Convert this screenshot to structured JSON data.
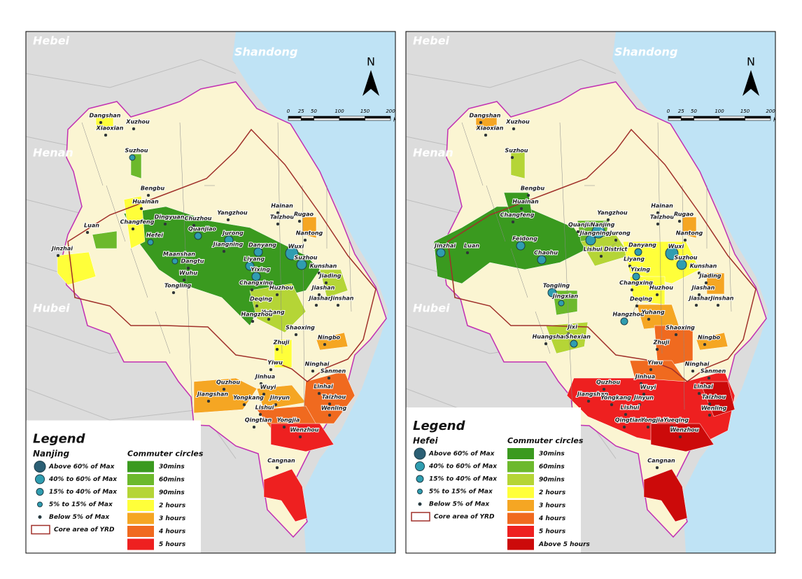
{
  "panels": [
    {
      "province_labels": [
        "Hebei",
        "Shandong",
        "Henan",
        "Hubei"
      ],
      "north": "N",
      "scale": {
        "ticks": [
          0,
          25,
          50,
          100,
          150,
          200
        ],
        "unit": "Km"
      },
      "cities": [
        "Dangshan",
        "Xuzhou",
        "Xiaoxian",
        "Suzhou",
        "Bengbu",
        "Huainan",
        "Changfeng",
        "Dingyuan",
        "Chuzhou",
        "Yangzhou",
        "Hainan",
        "Taizhou",
        "Rugao",
        "Quanjiao",
        "Jurong",
        "Nantong",
        "Luan",
        "Hefei",
        "Jiangning",
        "Danyang",
        "Wuxi",
        "Jinzhai",
        "Maanshan",
        "Dangtu",
        "Liyang",
        "Suzhou",
        "Kunshan",
        "Jiading",
        "Wuhu",
        "Yixing",
        "Changxing",
        "Huzhou",
        "Jiashan",
        "Jiashan",
        "Jinshan",
        "Tongling",
        "Deqing",
        "Yuhang",
        "Hangzhou",
        "Shaoxing",
        "Ningbo",
        "Zhuji",
        "Yiwu",
        "Ninghai",
        "Sanmen",
        "Jinhua",
        "Quzhou",
        "Wuyi",
        "Linhai",
        "Jiangshan",
        "Yongkang",
        "Jinyun",
        "Taizhou",
        "Lishui",
        "Wenling",
        "Qingtian",
        "Yongjia",
        "Wenzhou",
        "Cangnan"
      ],
      "legend": {
        "title": "Legend",
        "origin": "Nanjing",
        "circles": [
          "Above 60% of Max",
          "40% to 60% of Max",
          "15% to 40% of Max",
          "5% to 15% of Max",
          "Below 5% of Max"
        ],
        "classes_title": "Commuter circles",
        "classes": [
          {
            "label": "30mins",
            "color": "#3a9a1f"
          },
          {
            "label": "60mins",
            "color": "#6cb92c"
          },
          {
            "label": "90mins",
            "color": "#b5d536"
          },
          {
            "label": "2 hours",
            "color": "#ffff3a"
          },
          {
            "label": "3 hours",
            "color": "#f5a623"
          },
          {
            "label": "4 hours",
            "color": "#f06a1f"
          },
          {
            "label": "5 hours",
            "color": "#ee2020"
          }
        ],
        "core_area": "Core area of YRD"
      }
    },
    {
      "province_labels": [
        "Hebei",
        "Shandong",
        "Henan",
        "Hubei"
      ],
      "north": "N",
      "scale": {
        "ticks": [
          0,
          25,
          50,
          100,
          150,
          200
        ],
        "unit": "Km"
      },
      "cities": [
        "Dangshan",
        "Xuzhou",
        "Xiaoxian",
        "Suzhou",
        "Bengbu",
        "Huainan",
        "Changfeng",
        "Quanjiao",
        "Nanjing",
        "Yangzhou",
        "Hainan",
        "Taizhou",
        "Rugao",
        "Jiangning",
        "Jurong",
        "Nantong",
        "Jinzhai",
        "Luan",
        "Feidong",
        "Danyang",
        "Wuxi",
        "Chaohu",
        "Lishui District",
        "Liyang",
        "Yixing",
        "Suzhou",
        "Kunshan",
        "Jiading",
        "Changxing",
        "Tongling",
        "Huzhou",
        "Jiashan",
        "Jiashan",
        "Jinshan",
        "Jingxian",
        "Deqing",
        "Hangzhou",
        "Yuhang",
        "Shaoxing",
        "Ningbo",
        "Jixi",
        "Huangshan",
        "Shexian",
        "Zhuji",
        "Yiwu",
        "Ninghai",
        "Sanmen",
        "Jinhua",
        "Quzhou",
        "Wuyi",
        "Linhai",
        "Jiangshan",
        "Yongkang",
        "Jinyun",
        "Taizhou",
        "Lishui",
        "Wenling",
        "Qingtian",
        "Yongjia",
        "Yueqing",
        "Wenzhou",
        "Cangnan"
      ],
      "legend": {
        "title": "Legend",
        "origin": "Hefei",
        "circles": [
          "Above 60% of Max",
          "40% to 60% of Max",
          "15% to 40% of Max",
          "5% to 15% of Max",
          "Below 5% of Max"
        ],
        "classes_title": "Commuter circles",
        "classes": [
          {
            "label": "30mins",
            "color": "#3a9a1f"
          },
          {
            "label": "60mins",
            "color": "#6cb92c"
          },
          {
            "label": "90mins",
            "color": "#b5d536"
          },
          {
            "label": "2 hours",
            "color": "#ffff3a"
          },
          {
            "label": "3 hours",
            "color": "#f5a623"
          },
          {
            "label": "4 hours",
            "color": "#f06a1f"
          },
          {
            "label": "5 hours",
            "color": "#ee2020"
          },
          {
            "label": "Above 5 hours",
            "color": "#cc0a0a"
          }
        ],
        "core_area": "Core area of YRD"
      }
    }
  ]
}
